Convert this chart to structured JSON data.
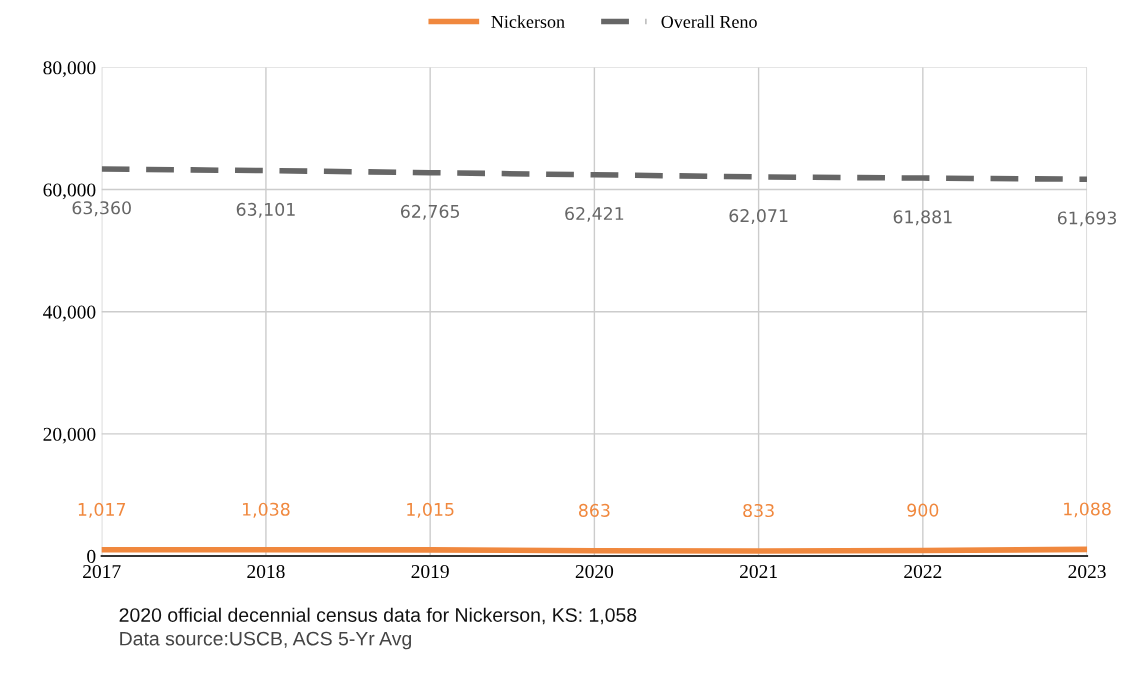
{
  "chart_data": {
    "type": "line",
    "x": [
      2017,
      2018,
      2019,
      2020,
      2021,
      2022,
      2023
    ],
    "series": [
      {
        "name": "Nickerson",
        "color": "#f0883e",
        "line_style": "solid",
        "values": [
          1017,
          1038,
          1015,
          863,
          833,
          900,
          1088
        ],
        "value_labels": [
          "1,017",
          "1,038",
          "1,015",
          "863",
          "833",
          "900",
          "1,088"
        ]
      },
      {
        "name": "Overall Reno",
        "color": "#666666",
        "line_style": "dashed",
        "values": [
          63360,
          63101,
          62765,
          62421,
          62071,
          61881,
          61693
        ],
        "value_labels": [
          "63,360",
          "63,101",
          "62,765",
          "62,421",
          "62,071",
          "61,881",
          "61,693"
        ]
      }
    ],
    "xlim": [
      2017,
      2023
    ],
    "xticks": [
      2017,
      2018,
      2019,
      2020,
      2021,
      2022,
      2023
    ],
    "ylim": [
      0,
      80000
    ],
    "yticks": [
      {
        "value": 0,
        "label": "0"
      },
      {
        "value": 20000,
        "label": "20,000"
      },
      {
        "value": 40000,
        "label": "40,000"
      },
      {
        "value": 60000,
        "label": "60,000"
      },
      {
        "value": 80000,
        "label": "80,000"
      }
    ],
    "grid": true,
    "legend": "top",
    "marker": "none",
    "annotations": [
      "2020 official decennial census data for Nickerson, KS: 1,058",
      "Data source:USCB, ACS 5-Yr Avg"
    ]
  }
}
